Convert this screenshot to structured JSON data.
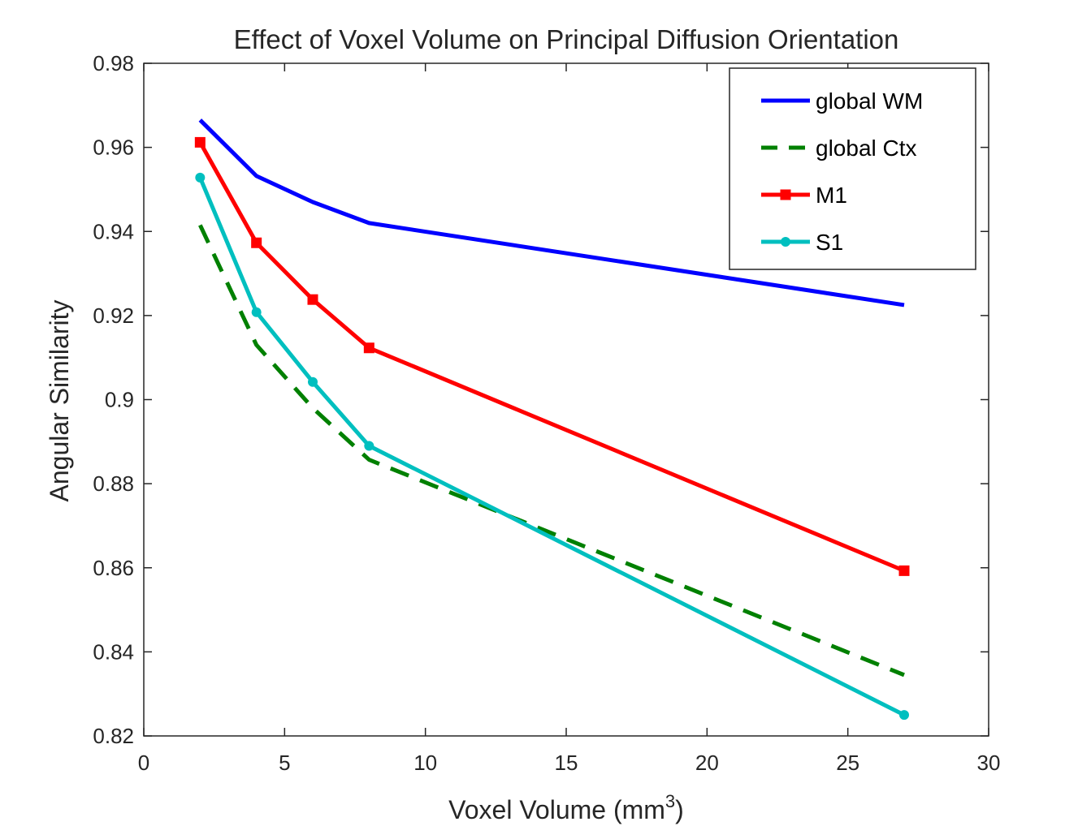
{
  "chart_data": {
    "type": "line",
    "title": "Effect of Voxel Volume on Principal Diffusion Orientation",
    "xlabel": "Voxel Volume (mm",
    "xlabel_superscript": "3",
    "xlabel_suffix": ")",
    "ylabel": "Angular Similarity",
    "xlim": [
      0,
      30
    ],
    "ylim": [
      0.82,
      0.98
    ],
    "xticks": [
      0,
      5,
      10,
      15,
      20,
      25,
      30
    ],
    "xtick_labels": [
      "0",
      "5",
      "10",
      "15",
      "20",
      "25",
      "30"
    ],
    "yticks": [
      0.82,
      0.84,
      0.86,
      0.88,
      0.9,
      0.92,
      0.94,
      0.96,
      0.98
    ],
    "ytick_labels": [
      "0.82",
      "0.84",
      "0.86",
      "0.88",
      "0.9",
      "0.92",
      "0.94",
      "0.96",
      "0.98"
    ],
    "grid": false,
    "legend_position": "top-right",
    "x": [
      2,
      4,
      6,
      8,
      27
    ],
    "series": [
      {
        "name": "global WM",
        "values": [
          0.9665,
          0.9532,
          0.947,
          0.942,
          0.9225
        ],
        "color": "#0000ff",
        "style": "solid",
        "marker": "none"
      },
      {
        "name": "global Ctx",
        "values": [
          0.9415,
          0.913,
          0.898,
          0.8857,
          0.8345
        ],
        "color": "#008000",
        "style": "dashed",
        "marker": "none"
      },
      {
        "name": "M1",
        "values": [
          0.9612,
          0.9373,
          0.9238,
          0.9123,
          0.8593
        ],
        "color": "#ff0000",
        "style": "solid",
        "marker": "square"
      },
      {
        "name": "S1",
        "values": [
          0.9528,
          0.9208,
          0.9042,
          0.889,
          0.825
        ],
        "color": "#00bfbf",
        "style": "solid",
        "marker": "circle"
      }
    ]
  }
}
